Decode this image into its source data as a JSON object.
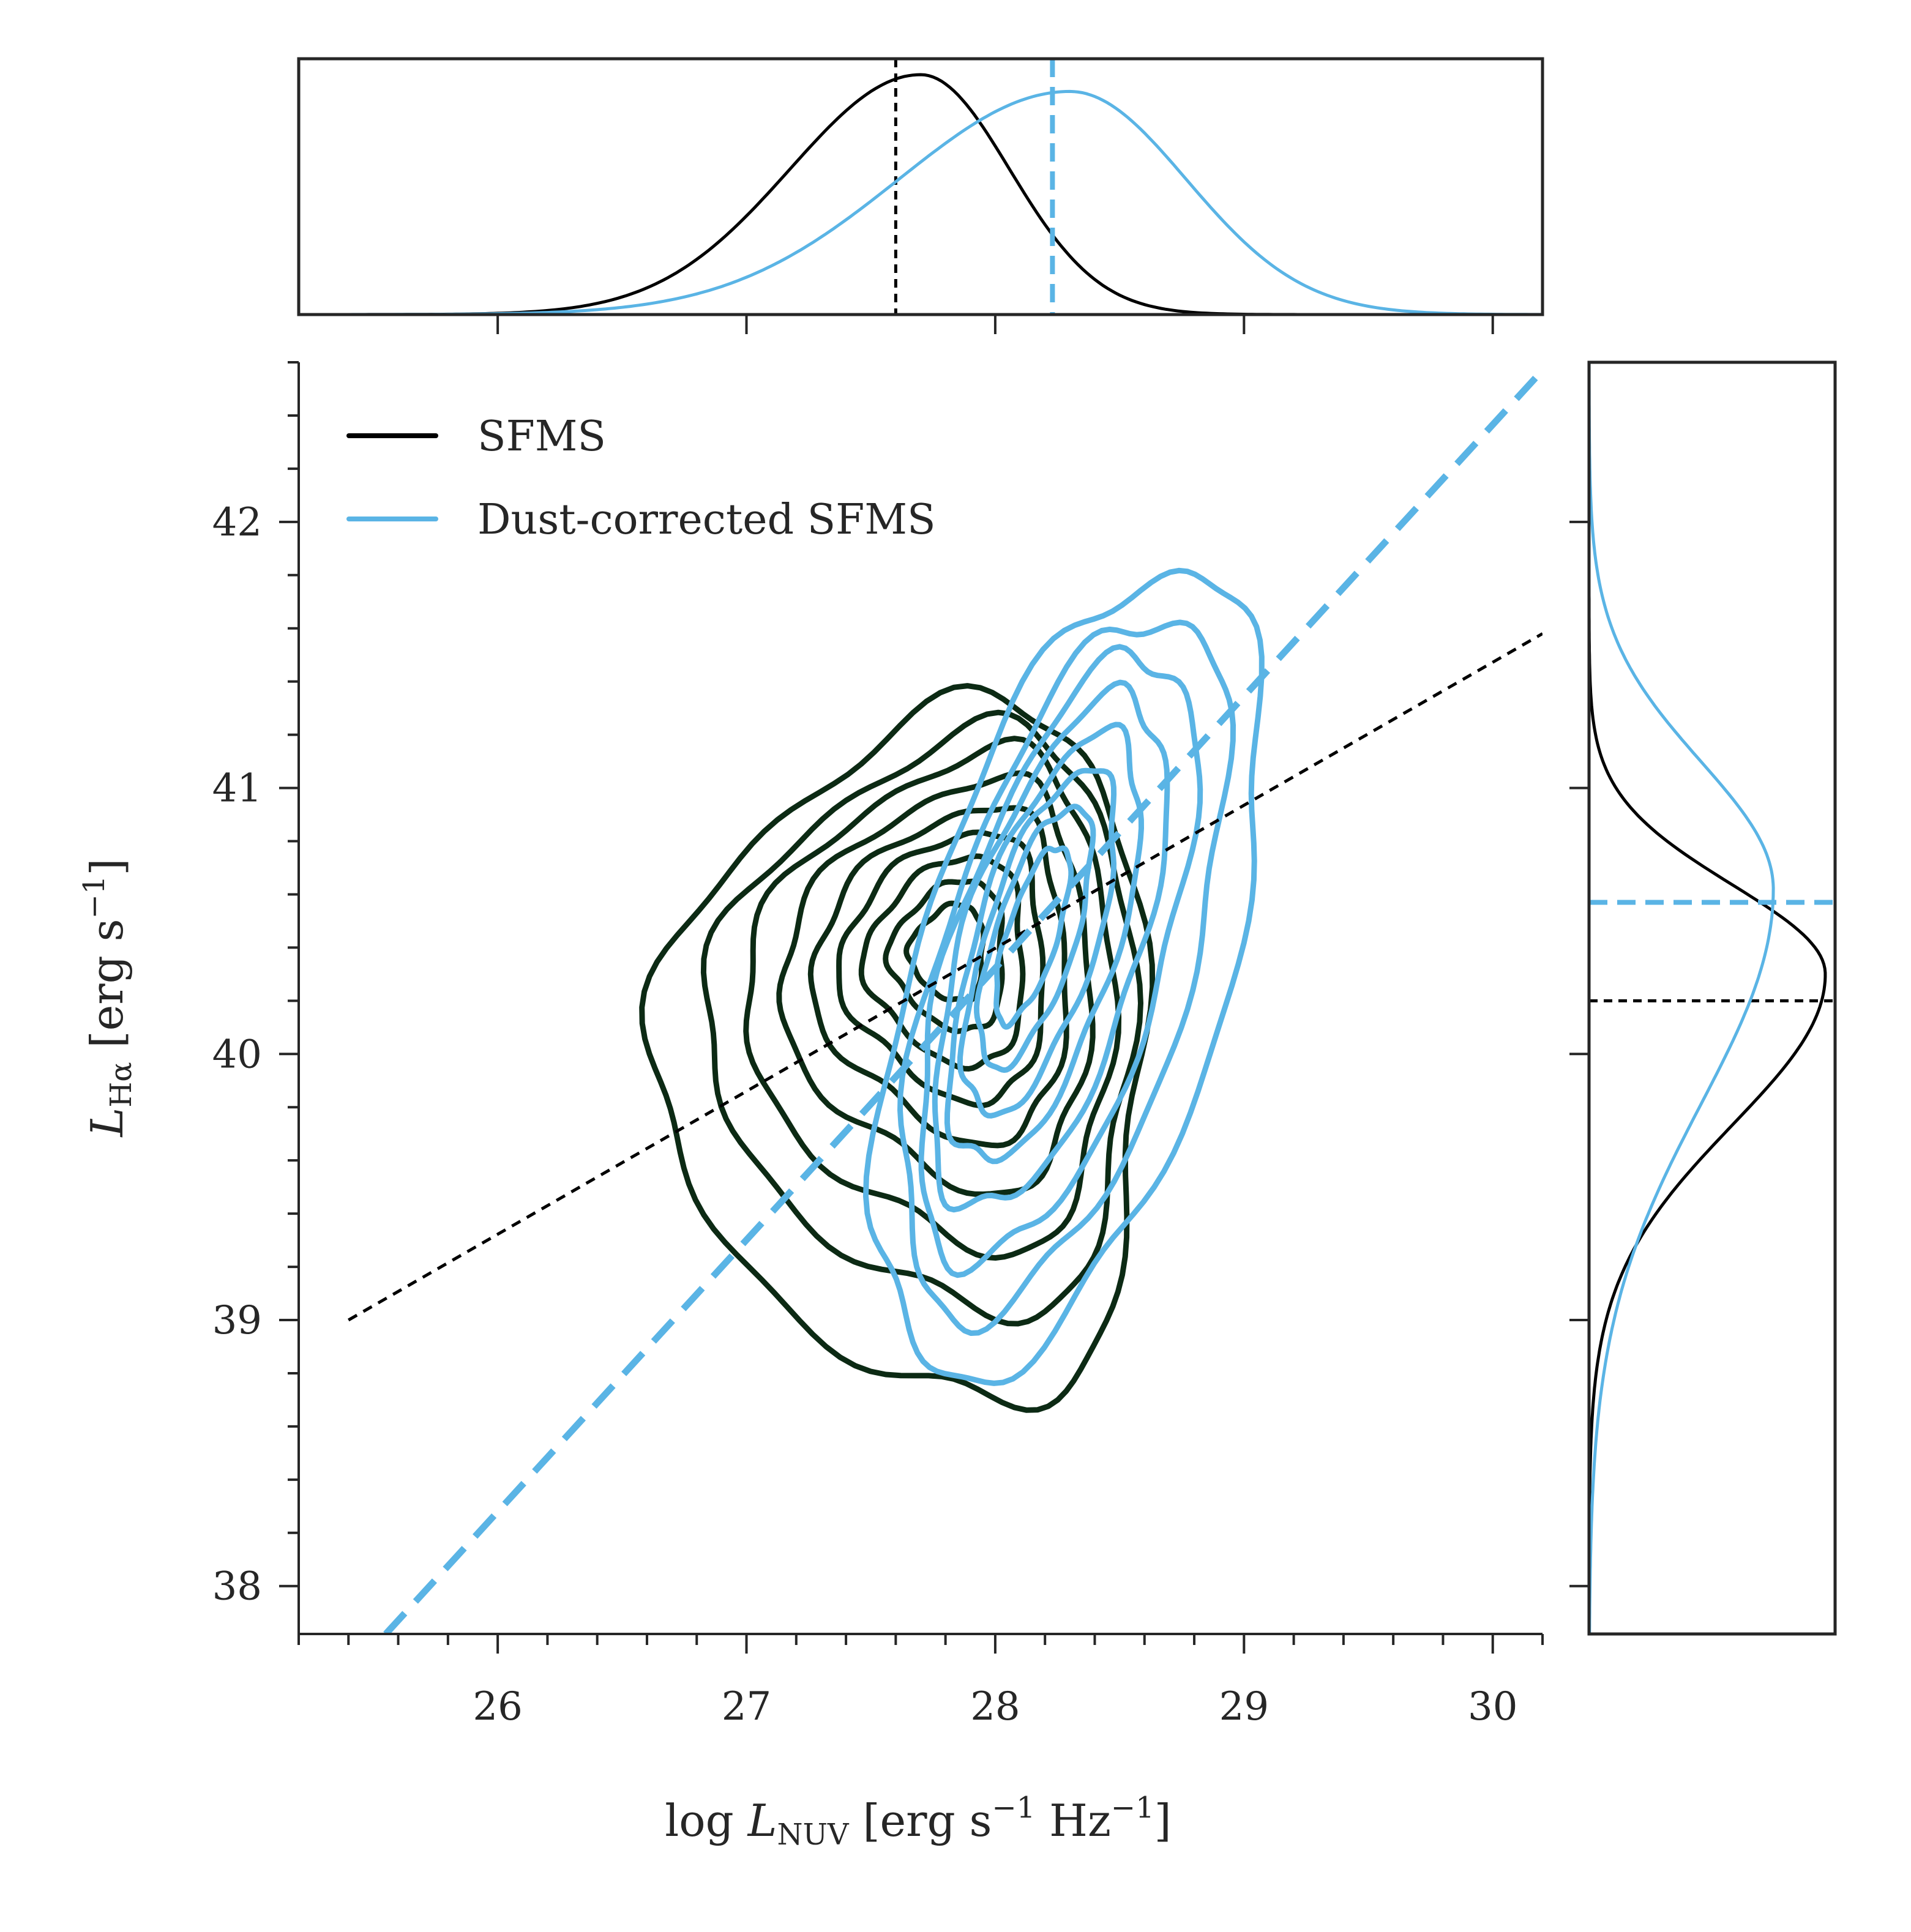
{
  "colors": {
    "sfms": "#000000",
    "sfms_contour": "#0c2a14",
    "dust": "#5ab4e5",
    "axis": "#262626"
  },
  "legend": [
    {
      "label": "SFMS",
      "color": "#000000"
    },
    {
      "label": "Dust-corrected SFMS",
      "color": "#5ab4e5"
    }
  ],
  "axes": {
    "xlabel": "log L_NUV [erg s⁻¹ Hz⁻¹]",
    "ylabel": "L_Hα [erg s⁻¹]",
    "xlabel_parts": {
      "log": "log ",
      "L": "L",
      "sub": "NUV",
      "unit_open": " [erg s",
      "exp1": "−1",
      "mid": " Hz",
      "exp2": "−1",
      "close": "]"
    },
    "ylabel_parts": {
      "L": "L",
      "sub": "Hα",
      "unit_open": " [erg s",
      "exp": "−1",
      "close": "]"
    }
  },
  "chart_data": [
    {
      "type": "contour",
      "title": "",
      "xlim": [
        25.2,
        30.2
      ],
      "ylim": [
        37.82,
        42.6
      ],
      "xticks": [
        26,
        27,
        28,
        29,
        30
      ],
      "xtick_labels": [
        "26",
        "27",
        "28",
        "29",
        "30"
      ],
      "yticks": [
        38,
        39,
        40,
        41,
        42
      ],
      "ytick_labels": [
        "38",
        "39",
        "40",
        "41",
        "42"
      ],
      "minor_step": 0.2,
      "series": [
        {
          "name": "SFMS",
          "fit_line": {
            "x": [
              25.4,
              30.2
            ],
            "y": [
              39.0,
              41.58
            ]
          },
          "center": [
            27.78,
            40.38
          ],
          "contour_levels": [
            {
              "rx": 0.99,
              "ry": 1.3,
              "x0": 27.6,
              "y0": 40.0
            },
            {
              "rx": 0.86,
              "ry": 1.08,
              "x0": 27.68,
              "y0": 40.12
            },
            {
              "rx": 0.74,
              "ry": 0.92,
              "x0": 27.72,
              "y0": 40.2
            },
            {
              "rx": 0.62,
              "ry": 0.76,
              "x0": 27.75,
              "y0": 40.26
            },
            {
              "rx": 0.51,
              "ry": 0.62,
              "x0": 27.77,
              "y0": 40.3
            },
            {
              "rx": 0.41,
              "ry": 0.5,
              "x0": 27.78,
              "y0": 40.33
            },
            {
              "rx": 0.32,
              "ry": 0.39,
              "x0": 27.79,
              "y0": 40.35
            },
            {
              "rx": 0.23,
              "ry": 0.28,
              "x0": 27.8,
              "y0": 40.37
            },
            {
              "rx": 0.15,
              "ry": 0.18,
              "x0": 27.8,
              "y0": 40.38
            }
          ]
        },
        {
          "name": "Dust-corrected SFMS",
          "fit_line": {
            "x": [
              25.55,
              30.2
            ],
            "y": [
              37.82,
              42.57
            ]
          },
          "center": [
            28.15,
            40.45
          ],
          "angle_deg": 60,
          "contour_levels": [
            {
              "a": 1.72,
              "b": 0.62,
              "x0": 28.3,
              "y0": 40.3
            },
            {
              "a": 1.5,
              "b": 0.5,
              "x0": 28.28,
              "y0": 40.33
            },
            {
              "a": 1.3,
              "b": 0.42,
              "x0": 28.25,
              "y0": 40.36
            },
            {
              "a": 1.1,
              "b": 0.35,
              "x0": 28.22,
              "y0": 40.38
            },
            {
              "a": 0.92,
              "b": 0.28,
              "x0": 28.2,
              "y0": 40.4
            },
            {
              "a": 0.74,
              "b": 0.22,
              "x0": 28.18,
              "y0": 40.42
            },
            {
              "a": 0.56,
              "b": 0.16,
              "x0": 28.16,
              "y0": 40.44
            },
            {
              "a": 0.38,
              "b": 0.1,
              "x0": 28.15,
              "y0": 40.45
            }
          ]
        }
      ]
    },
    {
      "type": "kde",
      "position": "top",
      "xlim": [
        25.2,
        30.2
      ],
      "xticks": [
        26,
        27,
        28,
        29,
        30
      ],
      "series": [
        {
          "name": "SFMS",
          "mean": 27.7,
          "sigma": 0.42,
          "mean_line": 27.6,
          "peak": 1.0
        },
        {
          "name": "Dust-corrected SFMS",
          "mean": 28.3,
          "sigma": 0.55,
          "mean_line": 28.23,
          "peak": 0.93
        }
      ]
    },
    {
      "type": "kde",
      "position": "right",
      "ylim": [
        37.82,
        42.6
      ],
      "yticks": [
        38,
        39,
        40,
        41,
        42
      ],
      "series": [
        {
          "name": "SFMS",
          "mean": 40.3,
          "sigma": 0.42,
          "mean_line": 40.2,
          "peak": 1.0
        },
        {
          "name": "Dust-corrected SFMS",
          "mean": 40.62,
          "sigma": 0.6,
          "mean_line": 40.57,
          "peak": 0.78
        }
      ]
    }
  ]
}
